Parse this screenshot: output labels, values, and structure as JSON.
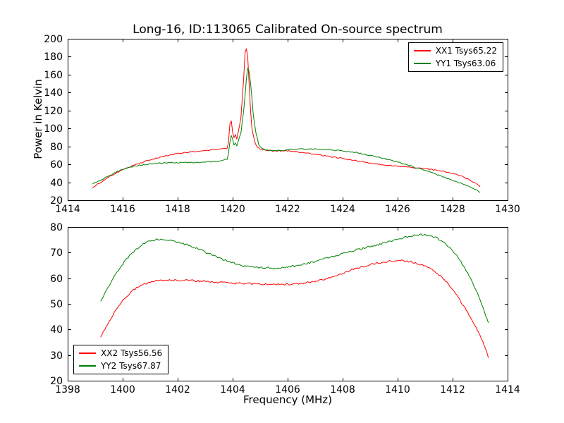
{
  "figure": {
    "background": "#ffffff",
    "axis_color": "#000000"
  },
  "chart_data": [
    {
      "type": "line",
      "title": "Long-16, ID:113065 Calibrated On-source spectrum",
      "xlabel": "",
      "ylabel": "Power in Kelvin",
      "xlim": [
        1414,
        1430
      ],
      "ylim": [
        20,
        200
      ],
      "xticks": [
        1414,
        1416,
        1418,
        1420,
        1422,
        1424,
        1426,
        1428,
        1430
      ],
      "yticks": [
        20,
        40,
        60,
        80,
        100,
        120,
        140,
        160,
        180,
        200
      ],
      "grid": false,
      "noise": 0.6,
      "legend_position": "upper right",
      "series": [
        {
          "name": "XX1 Tsys65.22",
          "color": "#ff0000",
          "points": [
            [
              1414.9,
              34
            ],
            [
              1415.2,
              40
            ],
            [
              1415.5,
              46
            ],
            [
              1415.8,
              51
            ],
            [
              1416.1,
              55
            ],
            [
              1416.5,
              60
            ],
            [
              1417.0,
              65
            ],
            [
              1417.5,
              69
            ],
            [
              1418.0,
              72
            ],
            [
              1418.5,
              74
            ],
            [
              1419.0,
              75.5
            ],
            [
              1419.3,
              76.5
            ],
            [
              1419.6,
              77
            ],
            [
              1419.8,
              78
            ],
            [
              1419.85,
              85
            ],
            [
              1419.9,
              105
            ],
            [
              1419.95,
              108
            ],
            [
              1420.0,
              96
            ],
            [
              1420.05,
              90
            ],
            [
              1420.1,
              93
            ],
            [
              1420.15,
              88
            ],
            [
              1420.2,
              95
            ],
            [
              1420.3,
              112
            ],
            [
              1420.4,
              155
            ],
            [
              1420.45,
              185
            ],
            [
              1420.5,
              189
            ],
            [
              1420.55,
              180
            ],
            [
              1420.6,
              150
            ],
            [
              1420.65,
              120
            ],
            [
              1420.7,
              100
            ],
            [
              1420.8,
              85
            ],
            [
              1420.9,
              79
            ],
            [
              1421.0,
              77
            ],
            [
              1421.2,
              76
            ],
            [
              1421.5,
              75
            ],
            [
              1422.0,
              75
            ],
            [
              1422.5,
              73.5
            ],
            [
              1423.0,
              71
            ],
            [
              1423.5,
              69
            ],
            [
              1424.0,
              66.5
            ],
            [
              1424.5,
              64
            ],
            [
              1425.0,
              61.5
            ],
            [
              1425.5,
              59.5
            ],
            [
              1426.0,
              58
            ],
            [
              1426.5,
              56.5
            ],
            [
              1427.0,
              55
            ],
            [
              1427.3,
              54
            ],
            [
              1427.6,
              52.5
            ],
            [
              1428.0,
              50
            ],
            [
              1428.3,
              47
            ],
            [
              1428.6,
              43
            ],
            [
              1428.9,
              38
            ],
            [
              1429.0,
              34.5
            ]
          ]
        },
        {
          "name": "YY1 Tsys63.06",
          "color": "#008000",
          "points": [
            [
              1414.9,
              38
            ],
            [
              1415.2,
              42.5
            ],
            [
              1415.5,
              47
            ],
            [
              1415.8,
              52
            ],
            [
              1416.1,
              55.5
            ],
            [
              1416.5,
              58.5
            ],
            [
              1417.0,
              60.5
            ],
            [
              1417.5,
              61.5
            ],
            [
              1418.0,
              62
            ],
            [
              1418.5,
              62
            ],
            [
              1419.0,
              62.5
            ],
            [
              1419.3,
              63
            ],
            [
              1419.6,
              64
            ],
            [
              1419.8,
              66
            ],
            [
              1419.85,
              72
            ],
            [
              1419.9,
              85
            ],
            [
              1419.95,
              92
            ],
            [
              1420.0,
              88
            ],
            [
              1420.05,
              82
            ],
            [
              1420.1,
              84
            ],
            [
              1420.15,
              80
            ],
            [
              1420.2,
              86
            ],
            [
              1420.3,
              95
            ],
            [
              1420.4,
              120
            ],
            [
              1420.5,
              155
            ],
            [
              1420.55,
              167
            ],
            [
              1420.6,
              163
            ],
            [
              1420.65,
              150
            ],
            [
              1420.7,
              135
            ],
            [
              1420.75,
              115
            ],
            [
              1420.85,
              95
            ],
            [
              1420.95,
              82
            ],
            [
              1421.1,
              77
            ],
            [
              1421.3,
              75.5
            ],
            [
              1421.6,
              75.5
            ],
            [
              1422.0,
              76
            ],
            [
              1422.5,
              77
            ],
            [
              1423.0,
              77
            ],
            [
              1423.5,
              76.5
            ],
            [
              1424.0,
              75
            ],
            [
              1424.5,
              73
            ],
            [
              1425.0,
              70
            ],
            [
              1425.5,
              66.5
            ],
            [
              1426.0,
              62.5
            ],
            [
              1426.3,
              60
            ],
            [
              1426.6,
              57
            ],
            [
              1427.0,
              53
            ],
            [
              1427.4,
              49
            ],
            [
              1427.8,
              44.5
            ],
            [
              1428.2,
              40
            ],
            [
              1428.6,
              35.5
            ],
            [
              1428.9,
              31
            ],
            [
              1429.0,
              28.5
            ]
          ]
        }
      ]
    },
    {
      "type": "line",
      "title": "",
      "xlabel": "Frequency (MHz)",
      "ylabel": "",
      "xlim": [
        1398,
        1414
      ],
      "ylim": [
        20,
        80
      ],
      "xticks": [
        1398,
        1400,
        1402,
        1404,
        1406,
        1408,
        1410,
        1412,
        1414
      ],
      "yticks": [
        20,
        30,
        40,
        50,
        60,
        70,
        80
      ],
      "grid": false,
      "noise": 0.35,
      "legend_position": "lower left",
      "series": [
        {
          "name": "XX2 Tsys56.56",
          "color": "#ff0000",
          "points": [
            [
              1399.2,
              37
            ],
            [
              1399.5,
              43
            ],
            [
              1399.8,
              48.5
            ],
            [
              1400.1,
              52.5
            ],
            [
              1400.4,
              55.5
            ],
            [
              1400.7,
              57.5
            ],
            [
              1401.0,
              58.5
            ],
            [
              1401.4,
              59.2
            ],
            [
              1401.8,
              59.3
            ],
            [
              1402.2,
              59.2
            ],
            [
              1402.6,
              59.0
            ],
            [
              1403.0,
              58.8
            ],
            [
              1403.5,
              58.4
            ],
            [
              1404.0,
              58.1
            ],
            [
              1404.5,
              57.9
            ],
            [
              1405.0,
              57.7
            ],
            [
              1405.5,
              57.6
            ],
            [
              1406.0,
              57.6
            ],
            [
              1406.4,
              57.9
            ],
            [
              1406.8,
              58.4
            ],
            [
              1407.2,
              59.2
            ],
            [
              1407.6,
              60.5
            ],
            [
              1408.0,
              62.0
            ],
            [
              1408.4,
              63.5
            ],
            [
              1408.8,
              64.8
            ],
            [
              1409.2,
              65.8
            ],
            [
              1409.6,
              66.5
            ],
            [
              1410.0,
              66.9
            ],
            [
              1410.3,
              66.8
            ],
            [
              1410.6,
              66.2
            ],
            [
              1411.0,
              64.8
            ],
            [
              1411.3,
              63.0
            ],
            [
              1411.6,
              60.5
            ],
            [
              1411.9,
              57.0
            ],
            [
              1412.2,
              52.5
            ],
            [
              1412.5,
              47.5
            ],
            [
              1412.8,
              42.0
            ],
            [
              1413.1,
              35.5
            ],
            [
              1413.3,
              29
            ]
          ]
        },
        {
          "name": "YY2 Tsys67.87",
          "color": "#008000",
          "points": [
            [
              1399.2,
              51
            ],
            [
              1399.5,
              57
            ],
            [
              1399.8,
              62.5
            ],
            [
              1400.1,
              67
            ],
            [
              1400.4,
              70.5
            ],
            [
              1400.7,
              73
            ],
            [
              1401.0,
              74.7
            ],
            [
              1401.3,
              75.2
            ],
            [
              1401.6,
              75.1
            ],
            [
              1402.0,
              74.2
            ],
            [
              1402.4,
              72.8
            ],
            [
              1402.8,
              71.2
            ],
            [
              1403.2,
              69.3
            ],
            [
              1403.6,
              67.5
            ],
            [
              1404.0,
              66.0
            ],
            [
              1404.4,
              64.8
            ],
            [
              1404.8,
              64.2
            ],
            [
              1405.2,
              64.0
            ],
            [
              1405.6,
              64.0
            ],
            [
              1406.0,
              64.3
            ],
            [
              1406.4,
              65.0
            ],
            [
              1406.8,
              66.0
            ],
            [
              1407.2,
              67.2
            ],
            [
              1407.6,
              68.3
            ],
            [
              1408.0,
              69.7
            ],
            [
              1408.4,
              70.8
            ],
            [
              1408.8,
              71.8
            ],
            [
              1409.2,
              72.8
            ],
            [
              1409.6,
              74.0
            ],
            [
              1410.0,
              75.2
            ],
            [
              1410.4,
              76.3
            ],
            [
              1410.8,
              77.0
            ],
            [
              1411.1,
              76.8
            ],
            [
              1411.4,
              75.8
            ],
            [
              1411.7,
              73.8
            ],
            [
              1412.0,
              70.8
            ],
            [
              1412.3,
              66.5
            ],
            [
              1412.6,
              61.0
            ],
            [
              1412.9,
              54.5
            ],
            [
              1413.1,
              48.5
            ],
            [
              1413.3,
              42.5
            ]
          ]
        }
      ]
    }
  ]
}
